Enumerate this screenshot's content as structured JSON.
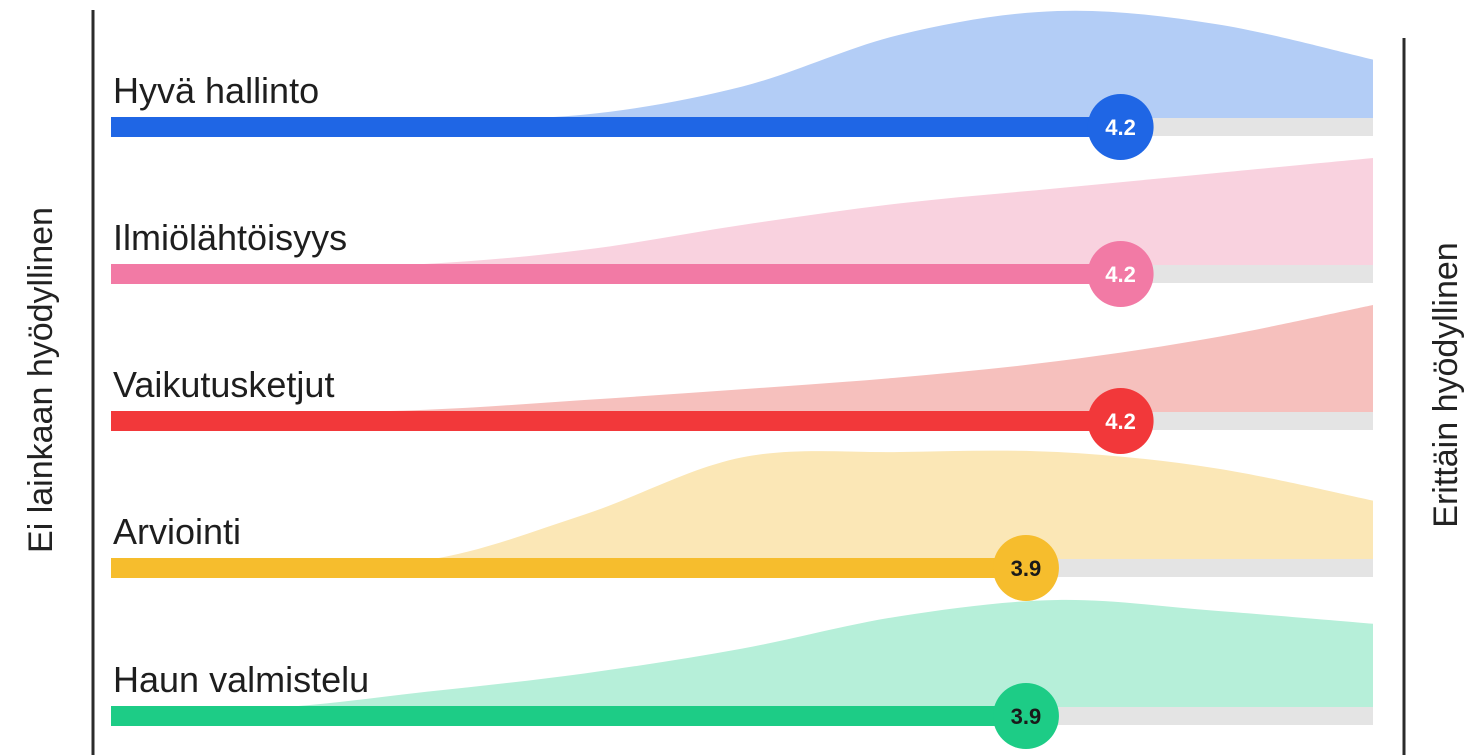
{
  "chart_data": {
    "type": "area",
    "left_label": "Ei lainkaan hyödyllinen",
    "right_label": "Erittäin hyödyllinen",
    "xlim": [
      1,
      5
    ],
    "grid": false,
    "legend": "none",
    "series": [
      {
        "name": "Hyvä hallinto",
        "mean": 4.2,
        "mean_label": "4.2",
        "color": "#1f66e5",
        "fill": "#b3cdf6",
        "badge_text_color": "#ffffff",
        "distribution": [
          [
            1,
            0
          ],
          [
            1.5,
            0
          ],
          [
            2,
            0
          ],
          [
            2.5,
            0.04
          ],
          [
            3,
            0.3
          ],
          [
            3.5,
            0.78
          ],
          [
            4,
            1.0
          ],
          [
            4.5,
            0.88
          ],
          [
            5,
            0.55
          ]
        ]
      },
      {
        "name": "Ilmiölähtöisyys",
        "mean": 4.2,
        "mean_label": "4.2",
        "color": "#f27aa5",
        "fill": "#f9d2df",
        "badge_text_color": "#ffffff",
        "distribution": [
          [
            1,
            0
          ],
          [
            1.5,
            0
          ],
          [
            2,
            0.02
          ],
          [
            2.5,
            0.15
          ],
          [
            3,
            0.38
          ],
          [
            3.5,
            0.58
          ],
          [
            4,
            0.72
          ],
          [
            4.5,
            0.86
          ],
          [
            5,
            1.0
          ]
        ]
      },
      {
        "name": "Vaikutusketjut",
        "mean": 4.2,
        "mean_label": "4.2",
        "color": "#f2383a",
        "fill": "#f6c0bd",
        "badge_text_color": "#ffffff",
        "distribution": [
          [
            1,
            0
          ],
          [
            1.5,
            0
          ],
          [
            2,
            0.03
          ],
          [
            2.5,
            0.12
          ],
          [
            3,
            0.22
          ],
          [
            3.5,
            0.33
          ],
          [
            4,
            0.48
          ],
          [
            4.5,
            0.7
          ],
          [
            5,
            1.0
          ]
        ]
      },
      {
        "name": "Arviointi",
        "mean": 3.9,
        "mean_label": "3.9",
        "color": "#f6bd2d",
        "fill": "#fbe7b6",
        "badge_text_color": "#1a1a1a",
        "distribution": [
          [
            1,
            0
          ],
          [
            1.5,
            0
          ],
          [
            2,
            0
          ],
          [
            2.5,
            0.42
          ],
          [
            3,
            0.95
          ],
          [
            3.5,
            1.0
          ],
          [
            4,
            1.0
          ],
          [
            4.5,
            0.85
          ],
          [
            5,
            0.55
          ]
        ]
      },
      {
        "name": "Haun valmistelu",
        "mean": 3.9,
        "mean_label": "3.9",
        "color": "#1dcc86",
        "fill": "#b6efd9",
        "badge_text_color": "#1a1a1a",
        "distribution": [
          [
            1,
            0
          ],
          [
            1.5,
            0
          ],
          [
            2,
            0.15
          ],
          [
            2.5,
            0.32
          ],
          [
            3,
            0.55
          ],
          [
            3.5,
            0.85
          ],
          [
            4,
            1.0
          ],
          [
            4.5,
            0.9
          ],
          [
            5,
            0.78
          ]
        ]
      }
    ]
  }
}
